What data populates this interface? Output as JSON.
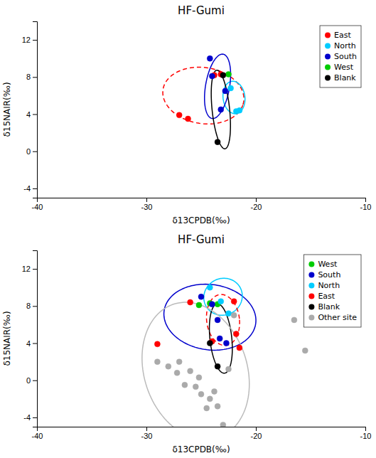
{
  "chart_data": [
    {
      "type": "scatter",
      "title": "HF-Gumi",
      "x_label": "δ13CPDB(‰)",
      "y_label": "δ15NAIR(‰)",
      "xlim": [
        -40,
        -10
      ],
      "ylim": [
        -5,
        14
      ],
      "xticks": [
        -40,
        -30,
        -20,
        -10
      ],
      "yticks": [
        -4,
        0,
        4,
        8,
        12
      ],
      "grid": false,
      "legend": "upper right",
      "series": [
        {
          "name": "East",
          "color": "#ff0000",
          "x": [
            -27.0,
            -26.2,
            -23.2,
            -23.8
          ],
          "values": [
            3.9,
            3.5,
            8.3,
            8.2
          ]
        },
        {
          "name": "North",
          "color": "#00ccff",
          "x": [
            -22.3,
            -21.8,
            -21.5
          ],
          "values": [
            6.8,
            4.3,
            4.4
          ]
        },
        {
          "name": "South",
          "color": "#0000cc",
          "x": [
            -24.2,
            -24.0,
            -23.2,
            -22.8
          ],
          "values": [
            10.0,
            8.1,
            4.5,
            6.5
          ]
        },
        {
          "name": "West",
          "color": "#00cc00",
          "x": [
            -22.5
          ],
          "values": [
            8.3
          ]
        },
        {
          "name": "Blank",
          "color": "#000000",
          "x": [
            -23.0,
            -23.5
          ],
          "values": [
            8.2,
            1.0
          ]
        }
      ],
      "ellipses": [
        {
          "cx": -24.8,
          "cy": 6.0,
          "width": 7.5,
          "height": 6.0,
          "angle": -15,
          "color": "#ff0000",
          "line_style": "dashed"
        },
        {
          "cx": -22.0,
          "cy": 5.8,
          "width": 2.0,
          "height": 3.5,
          "angle": 5,
          "color": "#00ccff",
          "line_style": "solid"
        },
        {
          "cx": -23.5,
          "cy": 7.0,
          "width": 2.2,
          "height": 7.0,
          "angle": -8,
          "color": "#0000cc",
          "line_style": "solid"
        },
        {
          "cx": -23.2,
          "cy": 4.5,
          "width": 1.6,
          "height": 8.5,
          "angle": 5,
          "color": "#000000",
          "line_style": "solid"
        }
      ]
    },
    {
      "type": "scatter",
      "title": "HF-Gumi",
      "x_label": "δ13CPDB(‰)",
      "y_label": "δ15NAIR(‰)",
      "xlim": [
        -40,
        -10
      ],
      "ylim": [
        -5,
        14
      ],
      "xticks": [
        -40,
        -30,
        -20,
        -10
      ],
      "yticks": [
        -4,
        0,
        4,
        8,
        12
      ],
      "grid": false,
      "legend": "upper right",
      "series": [
        {
          "name": "West",
          "color": "#00cc00",
          "x": [
            -25.2,
            -24.2,
            -23.5
          ],
          "values": [
            8.1,
            8.3,
            8.2
          ]
        },
        {
          "name": "South",
          "color": "#0000cc",
          "x": [
            -25.0,
            -24.0,
            -23.3,
            -22.7,
            -23.5
          ],
          "values": [
            9.0,
            8.2,
            4.5,
            4.0,
            6.5
          ]
        },
        {
          "name": "North",
          "color": "#00ccff",
          "x": [
            -24.2,
            -23.2,
            -22.5
          ],
          "values": [
            10.0,
            8.5,
            7.2
          ]
        },
        {
          "name": "East",
          "color": "#ff0000",
          "x": [
            -29.0,
            -26.0,
            -24.0,
            -22.0,
            -21.8,
            -21.5
          ],
          "values": [
            3.9,
            8.4,
            4.2,
            8.5,
            5.0,
            3.5
          ]
        },
        {
          "name": "Blank",
          "color": "#000000",
          "x": [
            -24.2,
            -23.5
          ],
          "values": [
            4.0,
            1.5
          ]
        },
        {
          "name": "Other site",
          "color": "#aaaaaa",
          "x": [
            -29.0,
            -28.0,
            -27.2,
            -27.0,
            -26.5,
            -26.0,
            -25.5,
            -25.2,
            -25.0,
            -24.5,
            -24.2,
            -23.8,
            -23.5,
            -23.0,
            -22.5,
            -22.0,
            -16.5,
            -15.5
          ],
          "values": [
            2.0,
            1.5,
            0.8,
            2.0,
            -0.5,
            1.0,
            -0.7,
            0.3,
            -1.5,
            -3.0,
            -2.0,
            -1.2,
            -2.8,
            -4.8,
            1.2,
            7.0,
            6.5,
            3.2
          ]
        }
      ],
      "ellipses": [
        {
          "cx": -24.2,
          "cy": 6.8,
          "width": 8.5,
          "height": 7.0,
          "angle": -15,
          "color": "#0000cc",
          "line_style": "solid"
        },
        {
          "cx": -23.0,
          "cy": 9.0,
          "width": 3.5,
          "height": 4.0,
          "angle": -10,
          "color": "#00ccff",
          "line_style": "solid"
        },
        {
          "cx": -23.0,
          "cy": 6.5,
          "width": 3.0,
          "height": 5.5,
          "angle": 5,
          "color": "#ff0000",
          "line_style": "dashed"
        },
        {
          "cx": -23.2,
          "cy": 4.5,
          "width": 2.0,
          "height": 7.5,
          "angle": 5,
          "color": "#000000",
          "line_style": "solid"
        },
        {
          "cx": -25.5,
          "cy": 1.0,
          "width": 9.5,
          "height": 15.0,
          "angle": 12,
          "color": "#bbbbbb",
          "line_style": "solid"
        }
      ]
    }
  ]
}
